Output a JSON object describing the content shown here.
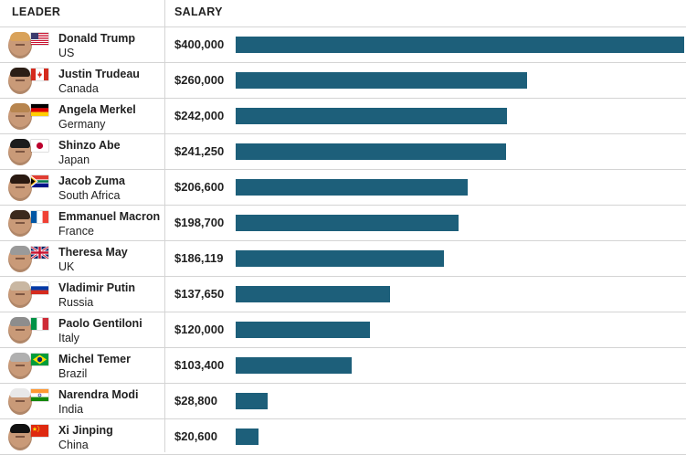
{
  "chart_data": {
    "type": "bar",
    "orientation": "horizontal",
    "headers": {
      "leader": "LEADER",
      "salary": "SALARY"
    },
    "series": [
      {
        "values": [
          400000,
          260000,
          242000,
          241250,
          206600,
          198700,
          186119,
          137650,
          120000,
          103400,
          28800,
          20600
        ]
      }
    ],
    "xlim": [
      0,
      400000
    ],
    "grid": false,
    "colors": {
      "bar": "#1d5f7a",
      "rule": "#d4d4d4"
    },
    "rows": [
      {
        "leader": "Donald Trump",
        "country": "US",
        "salary": "$400,000",
        "value": 400000,
        "flag": "us-flag",
        "hair": "#d9a25a"
      },
      {
        "leader": "Justin Trudeau",
        "country": "Canada",
        "salary": "$260,000",
        "value": 260000,
        "flag": "canada-flag",
        "hair": "#2b1e16"
      },
      {
        "leader": "Angela Merkel",
        "country": "Germany",
        "salary": "$242,000",
        "value": 242000,
        "flag": "germany-flag",
        "hair": "#b7854f"
      },
      {
        "leader": "Shinzo Abe",
        "country": "Japan",
        "salary": "$241,250",
        "value": 241250,
        "flag": "japan-flag",
        "hair": "#1c1c1c"
      },
      {
        "leader": "Jacob Zuma",
        "country": "South Africa",
        "salary": "$206,600",
        "value": 206600,
        "flag": "south-africa-flag",
        "hair": "#2a1a12"
      },
      {
        "leader": "Emmanuel Macron",
        "country": "France",
        "salary": "$198,700",
        "value": 198700,
        "flag": "france-flag",
        "hair": "#3b2a1e"
      },
      {
        "leader": "Theresa May",
        "country": "UK",
        "salary": "$186,119",
        "value": 186119,
        "flag": "uk-flag",
        "hair": "#9a9a9a"
      },
      {
        "leader": "Vladimir Putin",
        "country": "Russia",
        "salary": "$137,650",
        "value": 137650,
        "flag": "russia-flag",
        "hair": "#c9b7a2"
      },
      {
        "leader": "Paolo Gentiloni",
        "country": "Italy",
        "salary": "$120,000",
        "value": 120000,
        "flag": "italy-flag",
        "hair": "#8d8d8d"
      },
      {
        "leader": "Michel Temer",
        "country": "Brazil",
        "salary": "$103,400",
        "value": 103400,
        "flag": "brazil-flag",
        "hair": "#b0b0b0"
      },
      {
        "leader": "Narendra Modi",
        "country": "India",
        "salary": "$28,800",
        "value": 28800,
        "flag": "india-flag",
        "hair": "#e8e8e8"
      },
      {
        "leader": "Xi Jinping",
        "country": "China",
        "salary": "$20,600",
        "value": 20600,
        "flag": "china-flag",
        "hair": "#111111"
      }
    ]
  }
}
